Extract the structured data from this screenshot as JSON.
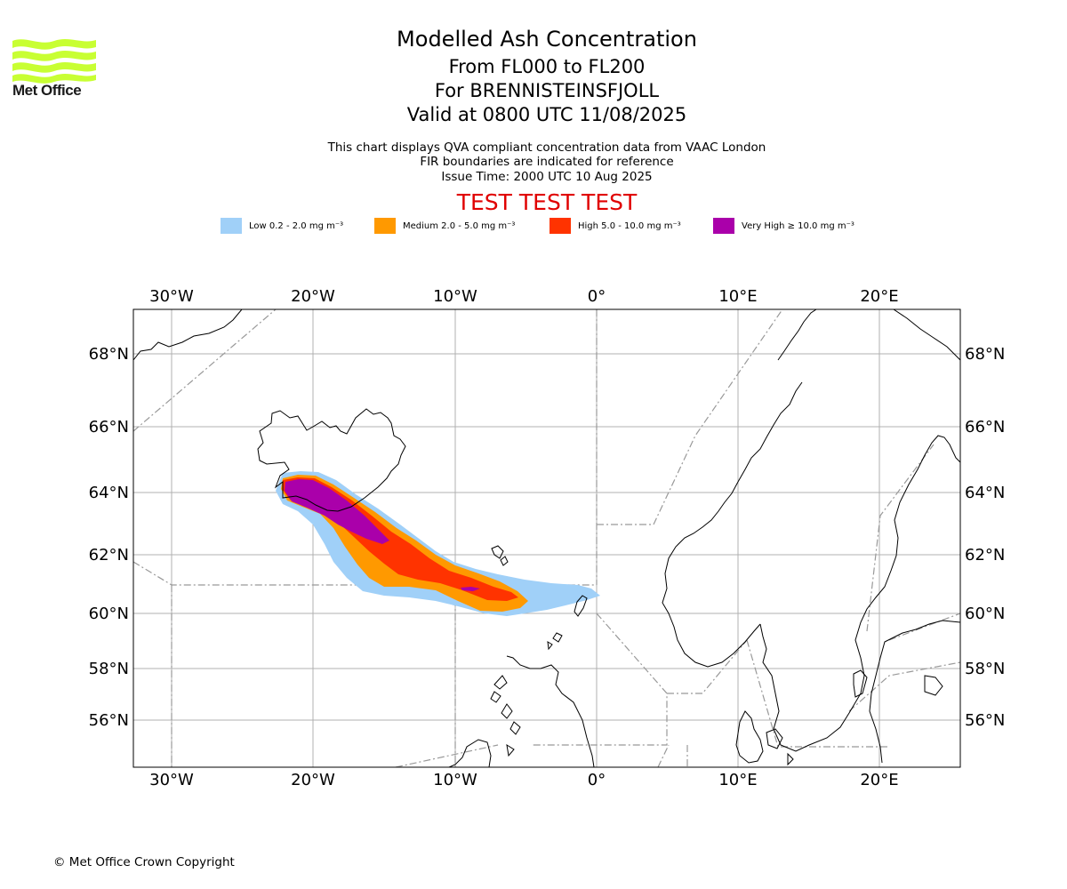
{
  "title": "Modelled Ash Concentration",
  "levels": "From FL000 to FL200",
  "volcano": "For BRENNISTEINSFJOLL",
  "valid": "Valid at 0800 UTC 11/08/2025",
  "notes": [
    "This chart displays QVA compliant concentration data from VAAC London",
    "FIR boundaries are indicated for reference",
    "Issue Time: 2000 UTC 10 Aug 2025"
  ],
  "test_banner": "TEST TEST TEST",
  "logo_text": "Met Office",
  "legend": [
    {
      "label": "Low 0.2 - 2.0 mg m⁻³",
      "color": "#a0d0f8"
    },
    {
      "label": "Medium 2.0 - 5.0 mg m⁻³",
      "color": "#ff9900"
    },
    {
      "label": "High 5.0 - 10.0 mg m⁻³",
      "color": "#ff3300"
    },
    {
      "label": "Very High ≥ 10.0 mg m⁻³",
      "color": "#aa00aa"
    }
  ],
  "lon_labels": [
    "30°W",
    "20°W",
    "10°W",
    "0°",
    "10°E",
    "20°E"
  ],
  "lat_labels": [
    "68°N",
    "66°N",
    "64°N",
    "62°N",
    "60°N",
    "58°N",
    "56°N"
  ],
  "copyright": "© Met Office Crown Copyright"
}
